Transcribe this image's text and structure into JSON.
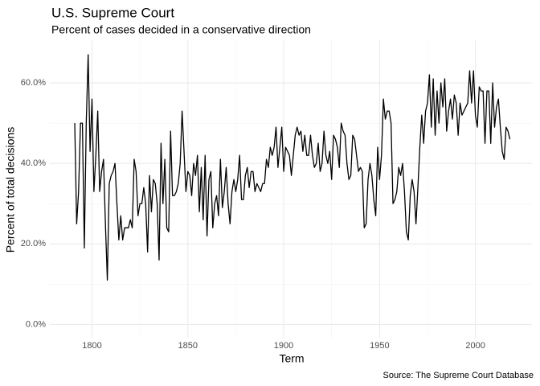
{
  "chart_data": {
    "type": "line",
    "title": "U.S. Supreme Court",
    "subtitle": "Percent of cases decided in a conservative direction",
    "x_label": "Term",
    "y_label": "Percent of total decisions",
    "caption": "Source: The Supreme Court Database",
    "color": "#000000",
    "grid": true,
    "xlim": [
      1778,
      2029.5
    ],
    "ylim": [
      -3.3,
      70.6
    ],
    "xticks": [
      1800,
      1850,
      1900,
      1950,
      2000
    ],
    "yticks": [
      {
        "value": 0,
        "label": "0.0%"
      },
      {
        "value": 20,
        "label": "20.0%"
      },
      {
        "value": 40,
        "label": "40.0%"
      },
      {
        "value": 60,
        "label": "60.0%"
      }
    ],
    "x": [
      1791,
      1792,
      1793,
      1794,
      1795,
      1796,
      1797,
      1798,
      1799,
      1800,
      1801,
      1802,
      1803,
      1804,
      1805,
      1806,
      1807,
      1808,
      1809,
      1810,
      1811,
      1812,
      1813,
      1814,
      1815,
      1816,
      1817,
      1818,
      1819,
      1820,
      1821,
      1822,
      1823,
      1824,
      1825,
      1826,
      1827,
      1828,
      1829,
      1830,
      1831,
      1832,
      1833,
      1834,
      1835,
      1836,
      1837,
      1838,
      1839,
      1840,
      1841,
      1842,
      1843,
      1844,
      1845,
      1846,
      1847,
      1848,
      1849,
      1850,
      1851,
      1852,
      1853,
      1854,
      1855,
      1856,
      1857,
      1858,
      1859,
      1860,
      1861,
      1862,
      1863,
      1864,
      1865,
      1866,
      1867,
      1868,
      1869,
      1870,
      1871,
      1872,
      1873,
      1874,
      1875,
      1876,
      1877,
      1878,
      1879,
      1880,
      1881,
      1882,
      1883,
      1884,
      1885,
      1886,
      1887,
      1888,
      1889,
      1890,
      1891,
      1892,
      1893,
      1894,
      1895,
      1896,
      1897,
      1898,
      1899,
      1900,
      1901,
      1902,
      1903,
      1904,
      1905,
      1906,
      1907,
      1908,
      1909,
      1910,
      1911,
      1912,
      1913,
      1914,
      1915,
      1916,
      1917,
      1918,
      1919,
      1920,
      1921,
      1922,
      1923,
      1924,
      1925,
      1926,
      1927,
      1928,
      1929,
      1930,
      1931,
      1932,
      1933,
      1934,
      1935,
      1936,
      1937,
      1938,
      1939,
      1940,
      1941,
      1942,
      1943,
      1944,
      1945,
      1946,
      1947,
      1948,
      1949,
      1950,
      1951,
      1952,
      1953,
      1954,
      1955,
      1956,
      1957,
      1958,
      1959,
      1960,
      1961,
      1962,
      1963,
      1964,
      1965,
      1966,
      1967,
      1968,
      1969,
      1970,
      1971,
      1972,
      1973,
      1974,
      1975,
      1976,
      1977,
      1978,
      1979,
      1980,
      1981,
      1982,
      1983,
      1984,
      1985,
      1986,
      1987,
      1988,
      1989,
      1990,
      1991,
      1992,
      1993,
      1994,
      1995,
      1996,
      1997,
      1998,
      1999,
      2000,
      2001,
      2002,
      2003,
      2004,
      2005,
      2006,
      2007,
      2008,
      2009,
      2010,
      2011,
      2012,
      2013,
      2014,
      2015,
      2016,
      2017,
      2018
    ],
    "values": [
      50,
      25,
      33,
      50,
      50,
      19,
      50,
      67,
      43,
      56,
      33,
      42,
      53,
      33,
      38,
      41,
      25,
      11,
      35,
      37,
      38,
      40,
      30,
      21,
      27,
      21,
      24,
      24,
      24,
      26,
      24,
      41,
      38,
      27,
      30,
      30,
      34,
      30,
      18,
      37,
      28,
      36,
      35,
      30,
      16,
      45,
      30,
      41,
      24,
      23,
      48,
      32,
      32,
      33,
      35,
      40,
      53,
      43,
      33,
      38,
      37,
      32,
      40,
      37,
      42,
      28,
      39,
      26,
      42,
      22,
      36,
      38,
      24,
      30,
      32,
      27,
      41,
      29,
      33,
      39,
      30,
      25,
      33,
      36,
      33,
      36,
      42,
      31,
      31,
      37,
      39,
      34,
      38,
      38,
      33,
      35,
      34,
      33,
      35,
      35,
      41,
      39,
      44,
      42,
      44,
      49,
      39,
      44,
      49,
      38,
      44,
      43,
      42,
      37,
      42,
      47,
      49,
      47,
      48,
      43,
      47,
      42,
      42,
      47,
      42,
      39,
      40,
      45,
      38,
      40,
      48,
      42,
      40,
      43,
      36,
      47,
      46,
      44,
      39,
      50,
      48,
      47,
      40,
      36,
      37,
      47,
      46,
      42,
      38,
      39,
      38,
      24,
      25,
      36,
      40,
      37,
      31,
      27,
      44,
      36,
      42,
      56,
      51,
      53,
      53,
      50,
      30,
      31,
      33,
      39,
      37,
      40,
      33,
      23,
      21,
      32,
      36,
      33,
      25,
      34,
      44,
      52,
      45,
      53,
      55,
      62,
      49,
      61,
      47,
      58,
      50,
      60,
      54,
      61,
      48,
      53,
      56,
      51,
      57,
      55,
      47,
      55,
      52,
      53,
      54,
      55,
      63,
      55,
      63,
      52,
      49,
      59,
      58,
      58,
      45,
      58,
      58,
      45,
      60,
      49,
      54,
      56,
      49,
      43,
      41,
      49,
      48,
      46
    ]
  }
}
